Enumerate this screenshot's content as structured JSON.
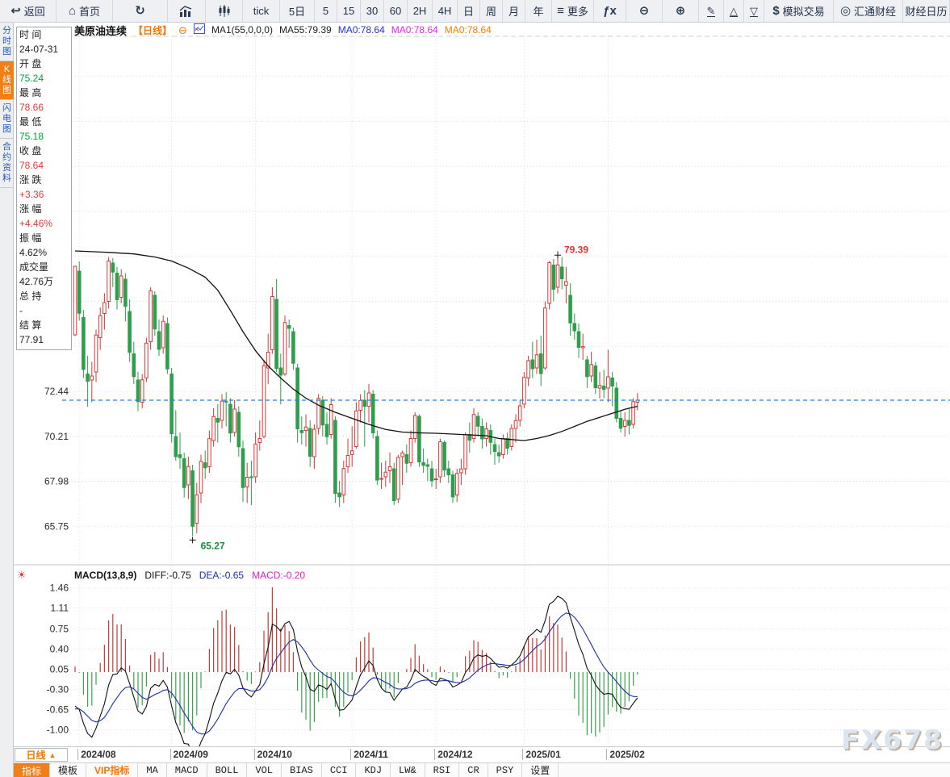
{
  "toolbar": {
    "items": [
      {
        "icon": "back-arrow-icon",
        "label": "返回"
      },
      {
        "icon": "home-icon",
        "label": "首页"
      },
      {
        "icon": "refresh-icon",
        "label": ""
      },
      {
        "icon": "bar-chart-icon",
        "label": ""
      },
      {
        "icon": "candlestick-icon",
        "label": ""
      },
      {
        "label": "tick"
      },
      {
        "label": "5日"
      },
      {
        "label": "5"
      },
      {
        "label": "15"
      },
      {
        "label": "30"
      },
      {
        "label": "60"
      },
      {
        "label": "2H"
      },
      {
        "label": "4H"
      },
      {
        "label": "日"
      },
      {
        "label": "周"
      },
      {
        "label": "月"
      },
      {
        "label": "年"
      },
      {
        "icon": "menu-icon",
        "label": "更多"
      },
      {
        "icon": "fx-icon",
        "label": ""
      },
      {
        "icon": "zoom-out-icon",
        "label": ""
      },
      {
        "icon": "zoom-in-icon",
        "label": ""
      },
      {
        "icon": "pencil-icon",
        "label": ""
      },
      {
        "icon": "triangle-up-icon",
        "label": ""
      },
      {
        "icon": "triangle-down-icon",
        "label": ""
      },
      {
        "icon": "dollar-icon",
        "label": "模拟交易"
      },
      {
        "icon": "huitong-logo-icon",
        "label": "汇通财经"
      },
      {
        "label": "财经日历"
      }
    ]
  },
  "sidebar": {
    "tabs": [
      {
        "label": "分时图",
        "active": false
      },
      {
        "label": "K线图",
        "active": true
      },
      {
        "label": "闪电图",
        "active": false
      },
      {
        "label": "合约资料",
        "active": false
      }
    ]
  },
  "info_panel": {
    "rows": [
      {
        "label": "时 间",
        "value": "24-07-31",
        "color": "dark"
      },
      {
        "label": "开 盘",
        "value": "75.24",
        "color": "green"
      },
      {
        "label": "最 高",
        "value": "78.66",
        "color": "red"
      },
      {
        "label": "最 低",
        "value": "75.18",
        "color": "green"
      },
      {
        "label": "收 盘",
        "value": "78.64",
        "color": "red"
      },
      {
        "label": "涨 跌",
        "value": "+3.36",
        "color": "red"
      },
      {
        "label": "涨 幅",
        "value": "+4.46%",
        "color": "red"
      },
      {
        "label": "振 幅",
        "value": "4.62%",
        "color": "dark"
      },
      {
        "label": "成交量",
        "value": "42.76万",
        "color": "dark"
      },
      {
        "label": "总 持",
        "value": "-",
        "color": "dark"
      },
      {
        "label": "结 算",
        "value": "77.91",
        "color": "dark"
      }
    ]
  },
  "chart_header": {
    "symbol": "美原油连续",
    "period": "【日线】",
    "ma_settings": "MA1(55,0,0,0)",
    "ma55": "MA55:79.39",
    "ma0_blue": "MA0:78.64",
    "ma0_magenta": "MA0:78.64",
    "ma0_orange": "MA0:78.64"
  },
  "macd_header": {
    "title": "MACD(13,8,9)",
    "diff": "DIFF:-0.75",
    "dea": "DEA:-0.65",
    "macd": "MACD:-0.20"
  },
  "x_axis": {
    "period_box": "日线",
    "period_box_arrow": "▲"
  },
  "bottom_tabs": [
    {
      "label": "指标",
      "style": "active"
    },
    {
      "label": "模板",
      "style": ""
    },
    {
      "label": "VIP指标",
      "style": "vip"
    },
    {
      "label": "MA",
      "style": "mono"
    },
    {
      "label": "MACD",
      "style": "mono"
    },
    {
      "label": "BOLL",
      "style": "mono"
    },
    {
      "label": "VOL",
      "style": "mono"
    },
    {
      "label": "BIAS",
      "style": "mono"
    },
    {
      "label": "CCI",
      "style": "mono"
    },
    {
      "label": "KDJ",
      "style": "mono"
    },
    {
      "label": "LW&",
      "style": "mono"
    },
    {
      "label": "RSI",
      "style": "mono"
    },
    {
      "label": "CR",
      "style": "mono"
    },
    {
      "label": "PSY",
      "style": "mono"
    },
    {
      "label": "设置",
      "style": ""
    }
  ],
  "watermark": "FX678",
  "colors": {
    "up": "#d23b3b",
    "down": "#2f9e4c",
    "ma55": "#111111",
    "diff_line": "#111111",
    "dea_line": "#1b2f9e",
    "dashed_price_line": "#2080e0",
    "accent_orange": "#f07800",
    "annotation_high": "#e03333",
    "annotation_low": "#1d8a3c"
  },
  "chart_data": {
    "type": "candlestick",
    "symbol": "美原油连续",
    "period": "日线",
    "price_axis_ticks": [
      72.44,
      70.21,
      67.98,
      65.75
    ],
    "grid_step": 2.23,
    "last_price_line": 72.0,
    "max_annotation": {
      "price": "79.39",
      "index": 115
    },
    "min_annotation": {
      "price": "65.27",
      "index": 28
    },
    "month_ticks": {
      "labels": [
        "2024/08",
        "2024/09",
        "2024/10",
        "2024/11",
        "2024/12",
        "2025/01",
        "2025/02"
      ],
      "indices": [
        1,
        23,
        43,
        66,
        86,
        107,
        127
      ]
    },
    "candles": [
      [
        "07-31",
        75.24,
        78.66,
        75.18,
        78.64
      ],
      [
        "08-01",
        78.4,
        78.88,
        75.95,
        76.31
      ],
      [
        "08-02",
        76.1,
        76.48,
        73.1,
        73.52
      ],
      [
        "08-05",
        73.3,
        74.2,
        71.67,
        72.94
      ],
      [
        "08-06",
        73.0,
        73.9,
        71.9,
        73.2
      ],
      [
        "08-07",
        73.4,
        75.5,
        72.9,
        75.23
      ],
      [
        "08-08",
        75.1,
        76.6,
        74.5,
        76.19
      ],
      [
        "08-09",
        76.3,
        77.3,
        75.5,
        76.84
      ],
      [
        "08-12",
        76.9,
        79.1,
        76.55,
        78.9
      ],
      [
        "08-13",
        78.8,
        79.05,
        77.6,
        78.35
      ],
      [
        "08-14",
        78.3,
        78.6,
        76.5,
        76.98
      ],
      [
        "08-15",
        77.1,
        78.5,
        76.8,
        78.16
      ],
      [
        "08-16",
        78.0,
        78.3,
        75.9,
        76.65
      ],
      [
        "08-19",
        76.4,
        77.0,
        73.9,
        74.37
      ],
      [
        "08-20",
        74.3,
        74.9,
        72.8,
        73.17
      ],
      [
        "08-21",
        73.0,
        73.4,
        71.46,
        71.93
      ],
      [
        "08-22",
        71.9,
        73.3,
        71.6,
        73.01
      ],
      [
        "08-23",
        73.1,
        75.1,
        72.9,
        74.83
      ],
      [
        "08-26",
        74.9,
        77.6,
        74.5,
        77.42
      ],
      [
        "08-27",
        77.2,
        77.4,
        75.2,
        75.53
      ],
      [
        "08-28",
        75.4,
        76.0,
        74.2,
        74.52
      ],
      [
        "08-29",
        74.6,
        76.2,
        74.3,
        75.91
      ],
      [
        "08-30",
        75.8,
        76.1,
        73.3,
        73.55
      ],
      [
        "09-03",
        73.3,
        73.6,
        69.9,
        70.34
      ],
      [
        "09-04",
        70.2,
        71.5,
        69.0,
        69.2
      ],
      [
        "09-05",
        69.3,
        70.4,
        68.6,
        69.15
      ],
      [
        "09-06",
        69.1,
        69.4,
        67.17,
        67.67
      ],
      [
        "09-09",
        67.8,
        69.2,
        67.1,
        68.71
      ],
      [
        "09-10",
        68.5,
        68.8,
        65.27,
        65.75
      ],
      [
        "09-11",
        65.9,
        67.9,
        65.4,
        67.31
      ],
      [
        "09-12",
        67.4,
        69.3,
        66.9,
        68.97
      ],
      [
        "09-13",
        68.9,
        69.5,
        68.1,
        68.65
      ],
      [
        "09-16",
        68.7,
        70.5,
        68.4,
        70.09
      ],
      [
        "09-17",
        70.0,
        71.6,
        69.7,
        71.19
      ],
      [
        "09-18",
        71.1,
        71.8,
        69.9,
        70.91
      ],
      [
        "09-19",
        71.0,
        72.3,
        70.6,
        71.95
      ],
      [
        "09-20",
        71.95,
        72.4,
        70.7,
        71.92
      ],
      [
        "09-23",
        71.8,
        72.1,
        69.9,
        70.37
      ],
      [
        "09-24",
        70.4,
        72.0,
        70.2,
        71.56
      ],
      [
        "09-25",
        71.4,
        71.7,
        69.2,
        69.69
      ],
      [
        "09-26",
        69.6,
        70.0,
        66.95,
        67.67
      ],
      [
        "09-27",
        67.7,
        68.9,
        66.9,
        68.18
      ],
      [
        "09-30",
        68.2,
        69.0,
        66.8,
        68.17
      ],
      [
        "10-01",
        68.2,
        70.4,
        67.9,
        69.83
      ],
      [
        "10-02",
        69.9,
        71.0,
        69.5,
        70.1
      ],
      [
        "10-03",
        70.2,
        74.0,
        70.1,
        73.71
      ],
      [
        "10-04",
        73.6,
        75.3,
        72.8,
        74.38
      ],
      [
        "10-07",
        74.5,
        77.6,
        74.3,
        77.14
      ],
      [
        "10-08",
        77.0,
        78.0,
        73.4,
        73.57
      ],
      [
        "10-09",
        73.6,
        74.3,
        71.8,
        73.24
      ],
      [
        "10-10",
        73.3,
        76.2,
        73.2,
        75.85
      ],
      [
        "10-11",
        75.7,
        76.0,
        74.6,
        75.56
      ],
      [
        "10-14",
        75.4,
        75.6,
        73.5,
        73.83
      ],
      [
        "10-15",
        73.6,
        73.8,
        69.9,
        70.58
      ],
      [
        "10-16",
        70.5,
        71.2,
        69.8,
        70.39
      ],
      [
        "10-17",
        70.5,
        71.3,
        69.7,
        70.67
      ],
      [
        "10-18",
        70.6,
        71.0,
        68.7,
        69.22
      ],
      [
        "10-21",
        69.2,
        70.8,
        68.6,
        70.56
      ],
      [
        "10-22",
        70.6,
        72.3,
        70.3,
        72.09
      ],
      [
        "10-23",
        72.0,
        72.2,
        70.2,
        70.77
      ],
      [
        "10-24",
        70.8,
        71.4,
        69.8,
        70.19
      ],
      [
        "10-25",
        70.3,
        72.1,
        70.1,
        71.78
      ],
      [
        "10-28",
        71.0,
        71.2,
        66.92,
        67.38
      ],
      [
        "10-29",
        67.4,
        68.0,
        66.7,
        67.21
      ],
      [
        "10-30",
        67.3,
        69.0,
        66.9,
        68.61
      ],
      [
        "10-31",
        68.7,
        70.1,
        68.4,
        69.26
      ],
      [
        "11-01",
        69.3,
        70.7,
        68.7,
        69.49
      ],
      [
        "11-04",
        69.7,
        71.9,
        69.6,
        71.47
      ],
      [
        "11-05",
        71.5,
        72.3,
        70.9,
        71.99
      ],
      [
        "11-06",
        72.0,
        72.5,
        69.7,
        71.69
      ],
      [
        "11-07",
        71.7,
        72.8,
        70.9,
        72.36
      ],
      [
        "11-08",
        72.3,
        72.5,
        70.1,
        70.38
      ],
      [
        "11-11",
        70.2,
        70.5,
        67.8,
        68.04
      ],
      [
        "11-12",
        68.1,
        68.9,
        67.6,
        68.12
      ],
      [
        "11-13",
        68.2,
        69.0,
        67.7,
        68.43
      ],
      [
        "11-14",
        68.5,
        69.4,
        67.9,
        68.7
      ],
      [
        "11-15",
        68.6,
        68.9,
        66.8,
        67.02
      ],
      [
        "11-18",
        67.1,
        69.3,
        66.9,
        69.16
      ],
      [
        "11-19",
        69.2,
        69.5,
        67.8,
        69.39
      ],
      [
        "11-20",
        69.3,
        69.8,
        68.4,
        68.87
      ],
      [
        "11-21",
        68.9,
        70.5,
        68.7,
        70.1
      ],
      [
        "11-22",
        70.1,
        71.4,
        69.9,
        71.24
      ],
      [
        "11-25",
        71.2,
        71.3,
        68.7,
        68.94
      ],
      [
        "11-26",
        68.9,
        69.6,
        68.4,
        68.77
      ],
      [
        "11-27",
        68.8,
        69.1,
        68.0,
        68.72
      ],
      [
        "11-29",
        68.6,
        69.0,
        67.7,
        68.0
      ],
      [
        "12-02",
        68.1,
        68.6,
        67.6,
        68.1
      ],
      [
        "12-03",
        68.2,
        70.1,
        67.9,
        69.94
      ],
      [
        "12-04",
        69.9,
        70.0,
        68.2,
        68.54
      ],
      [
        "12-05",
        68.6,
        69.0,
        67.9,
        68.3
      ],
      [
        "12-06",
        68.3,
        68.5,
        66.9,
        67.2
      ],
      [
        "12-09",
        67.3,
        68.6,
        66.95,
        68.37
      ],
      [
        "12-10",
        68.4,
        69.1,
        67.8,
        68.59
      ],
      [
        "12-11",
        68.6,
        70.4,
        68.3,
        70.29
      ],
      [
        "12-12",
        70.3,
        70.9,
        69.4,
        70.02
      ],
      [
        "12-13",
        70.1,
        71.6,
        69.9,
        71.29
      ],
      [
        "12-16",
        71.2,
        71.4,
        70.2,
        70.71
      ],
      [
        "12-17",
        70.7,
        71.1,
        69.6,
        70.08
      ],
      [
        "12-18",
        70.1,
        70.9,
        69.7,
        70.58
      ],
      [
        "12-19",
        70.5,
        70.8,
        69.3,
        69.91
      ],
      [
        "12-20",
        69.8,
        70.1,
        68.8,
        69.46
      ],
      [
        "12-23",
        69.4,
        69.8,
        68.9,
        69.24
      ],
      [
        "12-24",
        69.3,
        70.3,
        69.1,
        70.1
      ],
      [
        "12-26",
        70.1,
        70.4,
        69.3,
        69.62
      ],
      [
        "12-27",
        69.7,
        70.8,
        69.5,
        70.6
      ],
      [
        "12-30",
        70.6,
        71.3,
        69.9,
        70.99
      ],
      [
        "12-31",
        71.0,
        72.0,
        70.7,
        71.72
      ],
      [
        "01-02",
        71.8,
        73.4,
        71.6,
        73.13
      ],
      [
        "01-03",
        73.1,
        74.2,
        72.7,
        73.96
      ],
      [
        "01-06",
        74.0,
        74.9,
        73.1,
        73.56
      ],
      [
        "01-07",
        73.6,
        75.0,
        73.3,
        74.25
      ],
      [
        "01-08",
        74.3,
        75.2,
        72.7,
        73.32
      ],
      [
        "01-10",
        73.6,
        76.9,
        73.5,
        76.57
      ],
      [
        "01-13",
        76.8,
        78.9,
        76.5,
        78.82
      ],
      [
        "01-14",
        78.7,
        79.0,
        76.9,
        77.5
      ],
      [
        "01-15",
        77.6,
        79.39,
        77.3,
        78.71
      ],
      [
        "01-16",
        78.6,
        79.1,
        77.5,
        78.02
      ],
      [
        "01-17",
        77.7,
        78.6,
        76.8,
        77.88
      ],
      [
        "01-21",
        77.2,
        77.8,
        75.2,
        75.83
      ],
      [
        "01-22",
        75.8,
        76.3,
        75.0,
        75.44
      ],
      [
        "01-23",
        75.4,
        75.8,
        74.1,
        74.62
      ],
      [
        "01-24",
        74.6,
        75.3,
        74.0,
        74.66
      ],
      [
        "01-27",
        74.0,
        74.2,
        72.6,
        73.17
      ],
      [
        "01-28",
        73.2,
        74.4,
        72.9,
        73.77
      ],
      [
        "01-29",
        73.7,
        73.9,
        72.3,
        72.62
      ],
      [
        "01-30",
        72.6,
        73.4,
        72.1,
        72.73
      ],
      [
        "01-31",
        72.7,
        73.5,
        72.1,
        72.53
      ],
      [
        "02-03",
        72.6,
        74.5,
        71.9,
        73.16
      ],
      [
        "02-04",
        73.1,
        73.4,
        71.7,
        72.7
      ],
      [
        "02-05",
        72.6,
        72.9,
        70.9,
        71.1
      ],
      [
        "02-06",
        71.1,
        71.5,
        70.4,
        70.61
      ],
      [
        "02-07",
        70.7,
        71.4,
        70.2,
        71.0
      ],
      [
        "02-10",
        71.0,
        71.6,
        70.3,
        70.75
      ],
      [
        "02-11",
        70.8,
        72.1,
        70.6,
        71.93
      ],
      [
        "02-12",
        71.9,
        72.35,
        71.5,
        72.0
      ]
    ],
    "ma55_anchors": [
      [
        0,
        79.4
      ],
      [
        8,
        79.33
      ],
      [
        14,
        79.25
      ],
      [
        19,
        79.1
      ],
      [
        23,
        78.9
      ],
      [
        27,
        78.55
      ],
      [
        31,
        78.1
      ],
      [
        34,
        77.45
      ],
      [
        37,
        76.45
      ],
      [
        40,
        75.4
      ],
      [
        43,
        74.45
      ],
      [
        46,
        73.7
      ],
      [
        49,
        73.1
      ],
      [
        52,
        72.55
      ],
      [
        55,
        72.1
      ],
      [
        58,
        71.75
      ],
      [
        62,
        71.4
      ],
      [
        66,
        71.1
      ],
      [
        70,
        70.8
      ],
      [
        74,
        70.55
      ],
      [
        78,
        70.42
      ],
      [
        82,
        70.38
      ],
      [
        86,
        70.36
      ],
      [
        90,
        70.32
      ],
      [
        94,
        70.28
      ],
      [
        98,
        70.24
      ],
      [
        101,
        70.1
      ],
      [
        104,
        70.05
      ],
      [
        107,
        70.0
      ],
      [
        110,
        70.1
      ],
      [
        113,
        70.25
      ],
      [
        116,
        70.45
      ],
      [
        119,
        70.7
      ],
      [
        122,
        70.95
      ],
      [
        125,
        71.15
      ],
      [
        128,
        71.35
      ],
      [
        131,
        71.55
      ],
      [
        134,
        71.7
      ]
    ],
    "macd": {
      "params": [
        13,
        8,
        9
      ],
      "diff_last": -0.75,
      "dea_last": -0.65,
      "macd_last": -0.2,
      "axis_ticks": [
        1.46,
        1.11,
        0.75,
        0.4,
        0.05,
        -0.3,
        -0.65,
        -1.0
      ]
    }
  }
}
